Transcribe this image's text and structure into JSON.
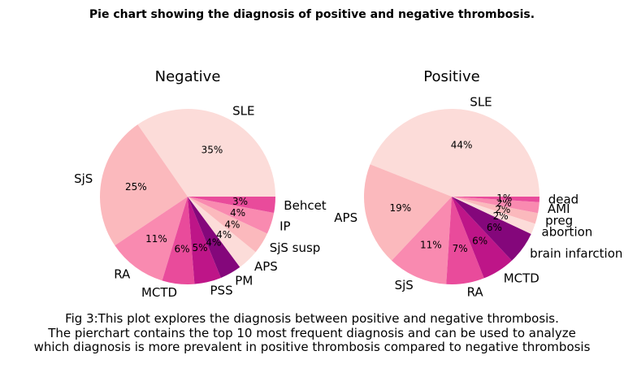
{
  "suptitle": "Pie chart showing the diagnosis of positive and negative thrombosis.",
  "caption": [
    "Fig 3:This plot explores the diagnosis between positive and negative thrombosis.",
    "The pierchart contains the top 10 most frequent diagnosis and can be used to analyze",
    "which diagnosis is more prevalent in positive thrombosis compared to negative thrombosis"
  ],
  "chart_data": [
    {
      "type": "pie",
      "title": "Negative",
      "labels": [
        "SLE",
        "SjS",
        "RA",
        "MCTD",
        "PSS",
        "PM",
        "APS",
        "SjS susp",
        "IP",
        "Behcet"
      ],
      "values": [
        35,
        25,
        11,
        6,
        5,
        4,
        4,
        4,
        4,
        3
      ],
      "pct_labels": [
        "35%",
        "25%",
        "11%",
        "6%",
        "5%",
        "4%",
        "4%",
        "4%",
        "4%",
        "3%"
      ],
      "colors": [
        "#fcdcd9",
        "#fbb9bd",
        "#f98ab0",
        "#e94b9b",
        "#be1588",
        "#84077b",
        "#fcdcd9",
        "#fbb9bd",
        "#f98ab0",
        "#e94b9b"
      ]
    },
    {
      "type": "pie",
      "title": "Positive",
      "labels": [
        "SLE",
        "APS",
        "SjS",
        "RA",
        "MCTD",
        "brain infarction",
        "abortion",
        "preg",
        "AMI",
        "dead"
      ],
      "values": [
        44,
        19,
        11,
        7,
        6,
        6,
        2,
        2,
        2,
        1
      ],
      "pct_labels": [
        "44%",
        "19%",
        "11%",
        "7%",
        "6%",
        "6%",
        "2%",
        "2%",
        "2%",
        "1%"
      ],
      "colors": [
        "#fcdcd9",
        "#fbb9bd",
        "#f98ab0",
        "#e94b9b",
        "#be1588",
        "#84077b",
        "#fcdcd9",
        "#fbb9bd",
        "#f98ab0",
        "#e94b9b"
      ]
    }
  ]
}
